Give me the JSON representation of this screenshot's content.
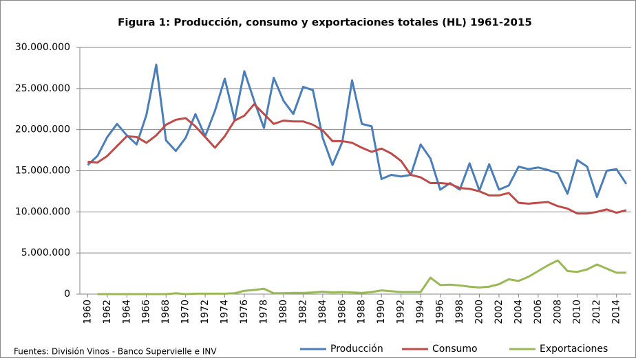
{
  "chart_data": {
    "type": "line",
    "title": "Figura 1: Producción, consumo y exportaciones totales (HL) 1961-2015",
    "source": "Fuentes: División Vinos - Banco Supervielle  e INV",
    "x": [
      1960,
      1961,
      1962,
      1963,
      1964,
      1965,
      1966,
      1967,
      1968,
      1969,
      1970,
      1971,
      1972,
      1973,
      1974,
      1975,
      1976,
      1977,
      1978,
      1979,
      1980,
      1981,
      1982,
      1983,
      1984,
      1985,
      1986,
      1987,
      1988,
      1989,
      1990,
      1991,
      1992,
      1993,
      1994,
      1995,
      1996,
      1997,
      1998,
      1999,
      2000,
      2001,
      2002,
      2003,
      2004,
      2005,
      2006,
      2007,
      2008,
      2009,
      2010,
      2011,
      2012,
      2013,
      2014,
      2015
    ],
    "series": [
      {
        "name": "Producción",
        "color": "#4a7ebb",
        "values": [
          15700000,
          16800000,
          19100000,
          20700000,
          19300000,
          18200000,
          21800000,
          27900000,
          18700000,
          17400000,
          19000000,
          21900000,
          19200000,
          22300000,
          26200000,
          21200000,
          27100000,
          23500000,
          20200000,
          26300000,
          23500000,
          21900000,
          25200000,
          24800000,
          19000000,
          15700000,
          18500000,
          26000000,
          20700000,
          20400000,
          14000000,
          14500000,
          14300000,
          14500000,
          18200000,
          16500000,
          12700000,
          13500000,
          12700000,
          15900000,
          12600000,
          15800000,
          12700000,
          13200000,
          15500000,
          15200000,
          15400000,
          15100000,
          14700000,
          12200000,
          16300000,
          15500000,
          11800000,
          15000000,
          15200000,
          13400000
        ]
      },
      {
        "name": "Consumo",
        "color": "#be4b48",
        "values": [
          16100000,
          16000000,
          16800000,
          18000000,
          19200000,
          19100000,
          18400000,
          19300000,
          20600000,
          21200000,
          21400000,
          20400000,
          19100000,
          17800000,
          19200000,
          21100000,
          21700000,
          23100000,
          21900000,
          20700000,
          21100000,
          21000000,
          21000000,
          20600000,
          19900000,
          18600000,
          18600000,
          18400000,
          17800000,
          17300000,
          17700000,
          17100000,
          16200000,
          14500000,
          14200000,
          13500000,
          13500000,
          13400000,
          12900000,
          12800000,
          12500000,
          12000000,
          12000000,
          12300000,
          11100000,
          11000000,
          11100000,
          11200000,
          10700000,
          10400000,
          9800000,
          9800000,
          10000000,
          10300000,
          9900000,
          10200000
        ]
      },
      {
        "name": "Exportaciones",
        "color": "#98b954",
        "values": [
          null,
          0,
          0,
          0,
          0,
          0,
          0,
          0,
          0,
          100000,
          0,
          50000,
          50000,
          50000,
          50000,
          100000,
          400000,
          500000,
          650000,
          100000,
          100000,
          150000,
          150000,
          200000,
          300000,
          200000,
          250000,
          200000,
          150000,
          250000,
          450000,
          350000,
          250000,
          250000,
          250000,
          2000000,
          1100000,
          1150000,
          1050000,
          900000,
          800000,
          900000,
          1200000,
          1800000,
          1600000,
          2100000,
          2800000,
          3500000,
          4100000,
          2800000,
          2700000,
          3000000,
          3600000,
          3100000,
          2600000,
          2600000
        ]
      }
    ],
    "xlim": [
      1959.2,
      2015.5
    ],
    "xticks": [
      1960,
      1962,
      1964,
      1966,
      1968,
      1970,
      1972,
      1974,
      1976,
      1978,
      1980,
      1982,
      1984,
      1986,
      1988,
      1990,
      1992,
      1994,
      1996,
      1998,
      2000,
      2002,
      2004,
      2006,
      2008,
      2010,
      2012,
      2014
    ],
    "ylim": [
      0,
      30000000
    ],
    "yticks": [
      0,
      {
        "value": 5000000,
        "label": "5.000.000"
      },
      {
        "value": 10000000,
        "label": "10.000.000"
      },
      {
        "value": 15000000,
        "label": "15.000.000"
      },
      {
        "value": 20000000,
        "label": "20.000.000"
      },
      {
        "value": 25000000,
        "label": "25.000.000"
      },
      {
        "value": 30000000,
        "label": "30.000.000"
      }
    ],
    "grid": true,
    "legend": "bottom"
  }
}
